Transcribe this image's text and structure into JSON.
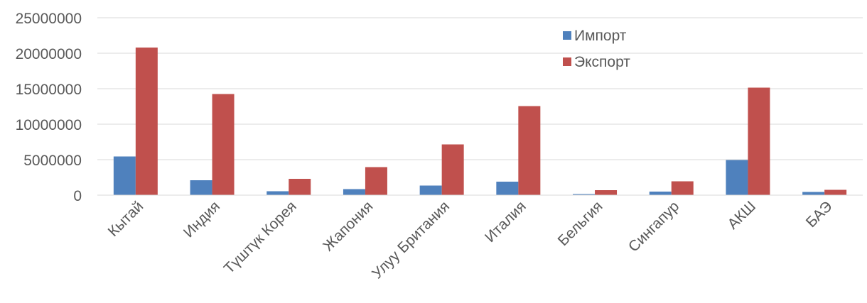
{
  "chart_data": {
    "type": "bar",
    "categories": [
      "Кытай",
      "Индия",
      "Түштүк Корея",
      "Жапония",
      "Улуу Британия",
      "Италия",
      "Бельгия",
      "Сингапур",
      "АКШ",
      "БАЭ"
    ],
    "series": [
      {
        "name": "Импорт",
        "color": "#4F81BD",
        "values": [
          5450000,
          2100000,
          550000,
          850000,
          1350000,
          1900000,
          150000,
          500000,
          4950000,
          450000
        ]
      },
      {
        "name": "Экспорт",
        "color": "#C0504D",
        "values": [
          20800000,
          14250000,
          2300000,
          3950000,
          7150000,
          12550000,
          700000,
          1950000,
          15150000,
          750000
        ]
      }
    ],
    "yticks": [
      "0",
      "5000000",
      "10000000",
      "15000000",
      "20000000",
      "25000000"
    ],
    "ylim": [
      0,
      25000000
    ],
    "grid": true,
    "legend_position": "top-right",
    "title": "",
    "xlabel": "",
    "ylabel": ""
  }
}
